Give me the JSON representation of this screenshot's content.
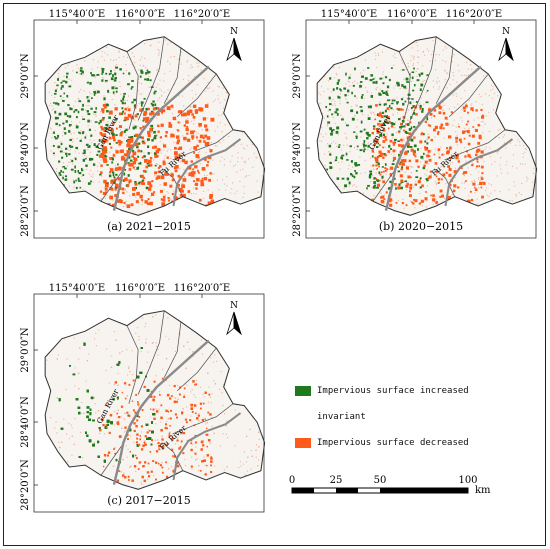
{
  "panels": [
    {
      "caption": "(a) 2021−2015",
      "variant": "a"
    },
    {
      "caption": "(b) 2020−2015",
      "variant": "b"
    },
    {
      "caption": "(c) 2017−2015",
      "variant": "c"
    }
  ],
  "axes": {
    "lon_labels": [
      "115°40′0″E",
      "116°0′0″E",
      "116°20′0″E"
    ],
    "lat_labels": [
      "29°0′0″N",
      "28°40′0″N",
      "28°20′0″N"
    ]
  },
  "rivers": {
    "gan": "Gan River",
    "fu": "Fu River"
  },
  "north_arrow": {
    "label": "N",
    "icon": "north-arrow-icon"
  },
  "legend": {
    "items": [
      {
        "label": "Impervious surface increased",
        "color": "#1f7a1f"
      },
      {
        "label": "invariant",
        "color": "#ffffff"
      },
      {
        "label": "Impervious surface decreased",
        "color": "#ff5a1a"
      }
    ]
  },
  "scale": {
    "ticks": [
      "0",
      "25",
      "50",
      "100"
    ],
    "unit": "km"
  }
}
